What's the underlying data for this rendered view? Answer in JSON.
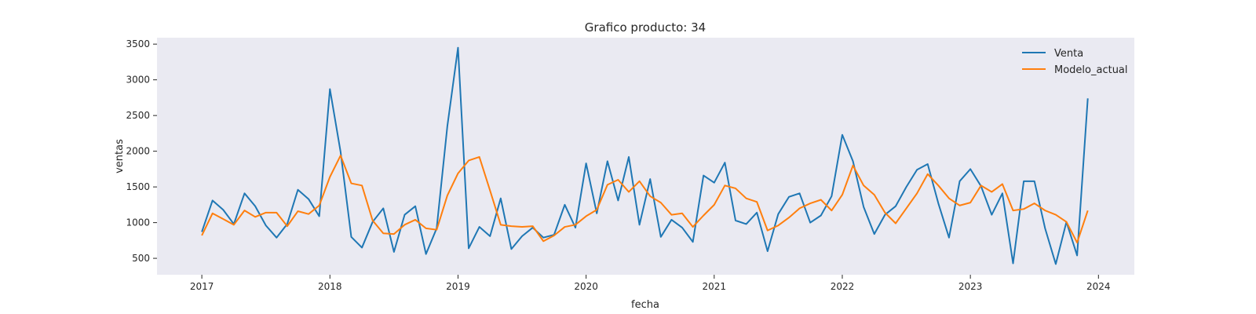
{
  "chart_data": {
    "type": "line",
    "title": "Grafico producto: 34",
    "xlabel": "fecha",
    "ylabel": "ventas",
    "x_start": "2017-01",
    "xlim": [
      2016.65,
      2024.28
    ],
    "ylim": [
      270,
      3590
    ],
    "x_ticks": [
      2017,
      2018,
      2019,
      2020,
      2021,
      2022,
      2023,
      2024
    ],
    "x_tick_labels": [
      "2017",
      "2018",
      "2019",
      "2020",
      "2021",
      "2022",
      "2023",
      "2024"
    ],
    "y_ticks": [
      500,
      1000,
      1500,
      2000,
      2500,
      3000,
      3500
    ],
    "y_tick_labels": [
      "500",
      "1000",
      "1500",
      "2000",
      "2500",
      "3000",
      "3500"
    ],
    "legend": "top-right",
    "grid": false,
    "series": [
      {
        "name": "Venta",
        "color": "#1f77b4",
        "values": [
          870,
          1310,
          1180,
          980,
          1410,
          1230,
          960,
          790,
          980,
          1460,
          1330,
          1090,
          2870,
          1990,
          800,
          650,
          1010,
          1200,
          590,
          1110,
          1230,
          560,
          920,
          2350,
          3450,
          640,
          940,
          810,
          1340,
          630,
          810,
          930,
          790,
          830,
          1250,
          930,
          1830,
          1130,
          1860,
          1310,
          1920,
          970,
          1610,
          800,
          1040,
          930,
          730,
          1660,
          1560,
          1840,
          1030,
          980,
          1140,
          600,
          1120,
          1360,
          1410,
          1000,
          1100,
          1370,
          2230,
          1860,
          1220,
          840,
          1110,
          1230,
          1500,
          1740,
          1820,
          1270,
          790,
          1580,
          1750,
          1510,
          1110,
          1410,
          430,
          1580,
          1580,
          920,
          420,
          1010,
          540,
          2740
        ]
      },
      {
        "name": "Modelo_actual",
        "color": "#ff7f0e",
        "values": [
          820,
          1130,
          1050,
          970,
          1170,
          1080,
          1140,
          1140,
          950,
          1160,
          1120,
          1240,
          1640,
          1940,
          1550,
          1520,
          1030,
          850,
          840,
          970,
          1040,
          920,
          900,
          1380,
          1690,
          1870,
          1920,
          1450,
          970,
          950,
          940,
          950,
          740,
          820,
          940,
          970,
          1090,
          1180,
          1530,
          1600,
          1430,
          1580,
          1370,
          1280,
          1110,
          1130,
          940,
          1100,
          1250,
          1520,
          1480,
          1340,
          1290,
          890,
          960,
          1070,
          1200,
          1270,
          1320,
          1170,
          1390,
          1800,
          1520,
          1390,
          1140,
          990,
          1200,
          1410,
          1680,
          1520,
          1340,
          1240,
          1280,
          1520,
          1430,
          1540,
          1170,
          1190,
          1270,
          1170,
          1110,
          1010,
          720,
          1170
        ]
      }
    ]
  }
}
